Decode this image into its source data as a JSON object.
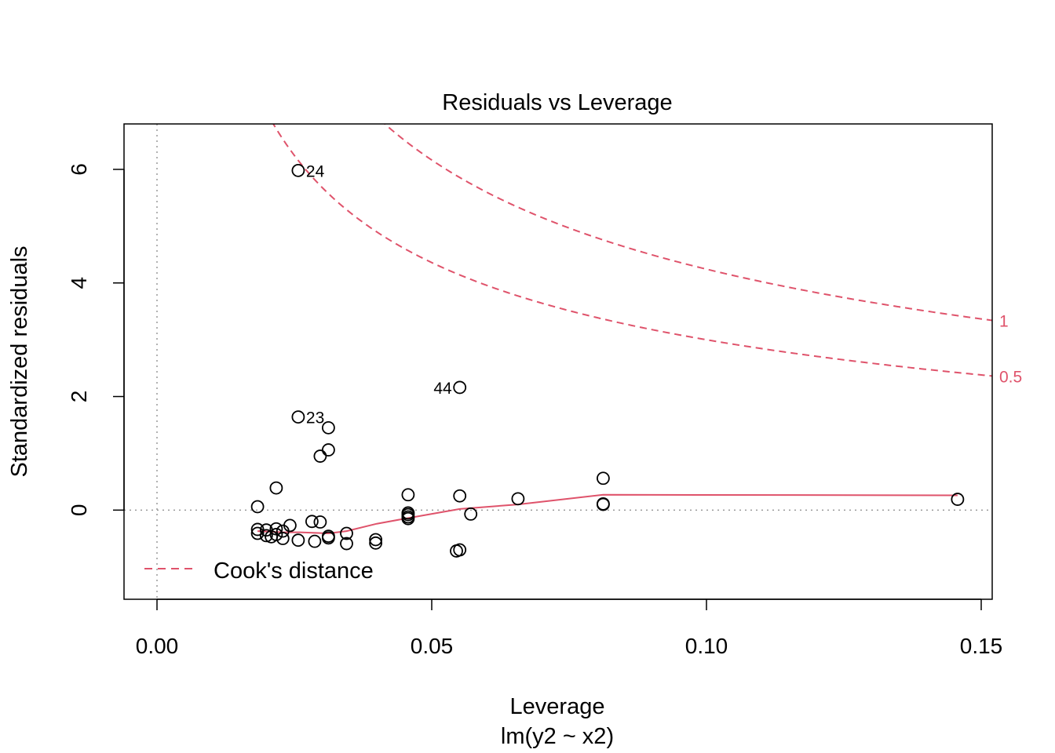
{
  "chart_data": {
    "type": "scatter",
    "title": "Residuals vs Leverage",
    "xlabel": "Leverage",
    "sublabel": "lm(y2 ~ x2)",
    "ylabel": "Standardized residuals",
    "xlim": [
      -0.006,
      0.152
    ],
    "ylim": [
      -1.57,
      6.8
    ],
    "x_ticks": [
      {
        "value": 0.0,
        "label": "0.00"
      },
      {
        "value": 0.05,
        "label": "0.05"
      },
      {
        "value": 0.1,
        "label": "0.10"
      },
      {
        "value": 0.15,
        "label": "0.15"
      }
    ],
    "y_ticks": [
      {
        "value": 0,
        "label": "0"
      },
      {
        "value": 2,
        "label": "2"
      },
      {
        "value": 4,
        "label": "4"
      },
      {
        "value": 6,
        "label": "6"
      }
    ],
    "colors": {
      "accent": "#DF536B",
      "reference": "#999999",
      "points": "#000000"
    },
    "points": [
      {
        "x": 0.0257,
        "y": 5.98,
        "label": "24",
        "label_side": "right"
      },
      {
        "x": 0.0551,
        "y": 2.16,
        "label": "44",
        "label_side": "left"
      },
      {
        "x": 0.0257,
        "y": 1.64,
        "label": "23",
        "label_side": "right"
      },
      {
        "x": 0.0312,
        "y": 1.45
      },
      {
        "x": 0.0312,
        "y": 1.06
      },
      {
        "x": 0.0297,
        "y": 0.95
      },
      {
        "x": 0.0217,
        "y": 0.39
      },
      {
        "x": 0.0183,
        "y": 0.06
      },
      {
        "x": 0.0812,
        "y": 0.56
      },
      {
        "x": 0.0457,
        "y": 0.27
      },
      {
        "x": 0.0551,
        "y": 0.25
      },
      {
        "x": 0.0657,
        "y": 0.2
      },
      {
        "x": 0.1457,
        "y": 0.19
      },
      {
        "x": 0.0812,
        "y": 0.11
      },
      {
        "x": 0.0812,
        "y": 0.1
      },
      {
        "x": 0.0457,
        "y": -0.05
      },
      {
        "x": 0.0457,
        "y": -0.08
      },
      {
        "x": 0.0457,
        "y": -0.12
      },
      {
        "x": 0.0571,
        "y": -0.07
      },
      {
        "x": 0.0457,
        "y": -0.15
      },
      {
        "x": 0.0282,
        "y": -0.2
      },
      {
        "x": 0.0297,
        "y": -0.21
      },
      {
        "x": 0.0242,
        "y": -0.27
      },
      {
        "x": 0.0183,
        "y": -0.34
      },
      {
        "x": 0.0199,
        "y": -0.35
      },
      {
        "x": 0.0217,
        "y": -0.33
      },
      {
        "x": 0.0229,
        "y": -0.37
      },
      {
        "x": 0.0183,
        "y": -0.41
      },
      {
        "x": 0.0199,
        "y": -0.45
      },
      {
        "x": 0.0217,
        "y": -0.43
      },
      {
        "x": 0.0208,
        "y": -0.47
      },
      {
        "x": 0.0229,
        "y": -0.5
      },
      {
        "x": 0.0257,
        "y": -0.53
      },
      {
        "x": 0.0287,
        "y": -0.55
      },
      {
        "x": 0.0312,
        "y": -0.46
      },
      {
        "x": 0.0312,
        "y": -0.49
      },
      {
        "x": 0.0345,
        "y": -0.41
      },
      {
        "x": 0.0345,
        "y": -0.59
      },
      {
        "x": 0.0398,
        "y": -0.52
      },
      {
        "x": 0.0398,
        "y": -0.58
      },
      {
        "x": 0.0551,
        "y": -0.7
      },
      {
        "x": 0.0545,
        "y": -0.72
      }
    ],
    "smooth_line": [
      {
        "x": 0.0183,
        "y": -0.37
      },
      {
        "x": 0.023,
        "y": -0.39
      },
      {
        "x": 0.026,
        "y": -0.39
      },
      {
        "x": 0.0312,
        "y": -0.41
      },
      {
        "x": 0.0345,
        "y": -0.37
      },
      {
        "x": 0.04,
        "y": -0.24
      },
      {
        "x": 0.0457,
        "y": -0.14
      },
      {
        "x": 0.0551,
        "y": 0.02
      },
      {
        "x": 0.0657,
        "y": 0.1
      },
      {
        "x": 0.0812,
        "y": 0.27
      },
      {
        "x": 0.1457,
        "y": 0.26
      }
    ],
    "cooks_contours": [
      {
        "level": 0.5,
        "label": "0.5"
      },
      {
        "level": 1,
        "label": "1"
      }
    ],
    "legend": {
      "label": "Cook's distance",
      "position": "bottom-left"
    }
  }
}
